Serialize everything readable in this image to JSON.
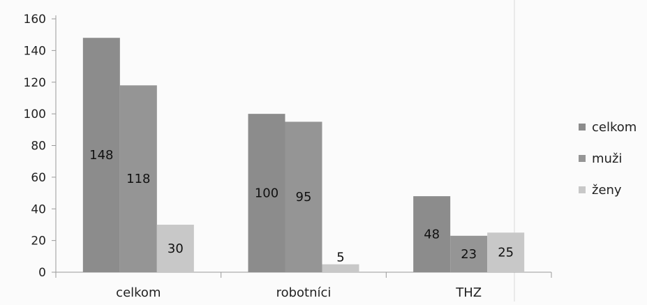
{
  "chart_data": {
    "type": "bar",
    "categories": [
      "celkom",
      "robotníci",
      "THZ"
    ],
    "series": [
      {
        "name": "celkom",
        "values": [
          148,
          100,
          48
        ],
        "color": "#8c8c8c"
      },
      {
        "name": "muži",
        "values": [
          118,
          95,
          23
        ],
        "color": "#959595"
      },
      {
        "name": "ženy",
        "values": [
          30,
          5,
          25
        ],
        "color": "#c8c8c8"
      }
    ],
    "data_labels": [
      [
        "148",
        "100",
        "48"
      ],
      [
        "118",
        "95",
        "23"
      ],
      [
        "30",
        "5",
        "25"
      ]
    ],
    "yticks": [
      "0",
      "20",
      "40",
      "60",
      "80",
      "100",
      "120",
      "140",
      "160"
    ],
    "ylim": [
      0,
      160
    ],
    "grid": false,
    "legend": "right",
    "title": "",
    "xlabel": "",
    "ylabel": ""
  }
}
